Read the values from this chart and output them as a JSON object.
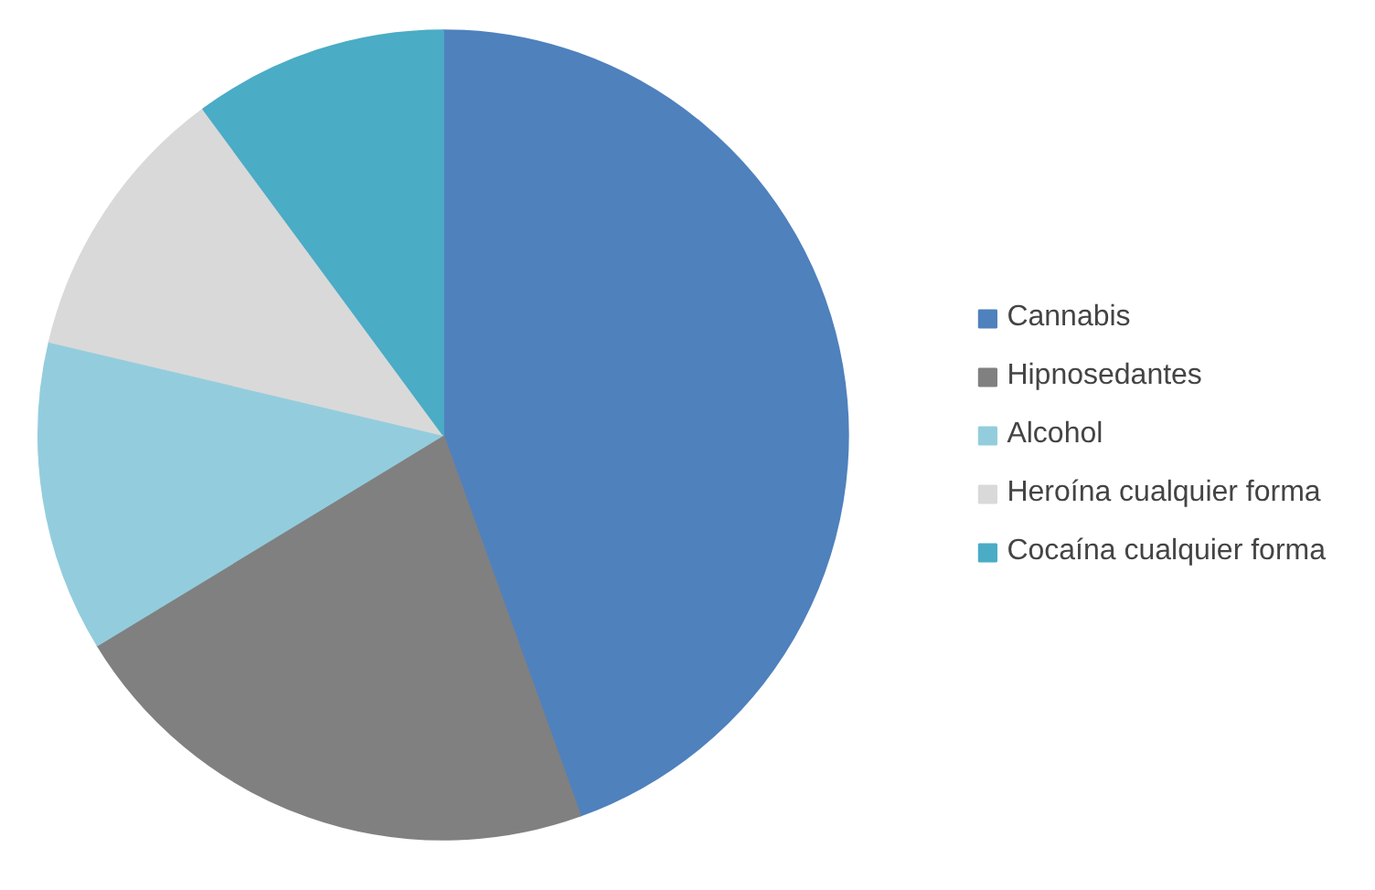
{
  "chart_data": {
    "type": "pie",
    "categories": [
      "Cannabis",
      "Hipnosedantes",
      "Alcohol",
      "Heroína cualquier forma",
      "Cocaína cualquier forma"
    ],
    "values": [
      44.5,
      21.8,
      12.4,
      11.2,
      10.1
    ],
    "colors": [
      "#4f81bd",
      "#808080",
      "#93cddd",
      "#d9d9d9",
      "#4bacc6"
    ],
    "legend": "right"
  }
}
